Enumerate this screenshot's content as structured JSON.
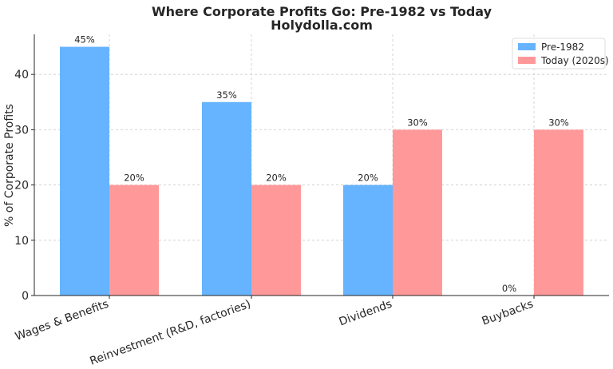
{
  "chart_data": {
    "type": "bar",
    "title": "Where Corporate Profits Go: Pre-1982 vs Today",
    "subtitle": "Holydolla.com",
    "xlabel": "",
    "ylabel": "% of Corporate Profits",
    "categories": [
      "Wages & Benefits",
      "Reinvestment (R&D, factories)",
      "Dividends",
      "Buybacks"
    ],
    "series": [
      {
        "name": "Pre-1982",
        "values": [
          45,
          35,
          20,
          0
        ],
        "color": "#66b3ff",
        "labels": [
          "45%",
          "35%",
          "20%",
          "0%"
        ]
      },
      {
        "name": "Today (2020s)",
        "values": [
          20,
          20,
          30,
          30
        ],
        "color": "#ff9999",
        "labels": [
          "20%",
          "20%",
          "30%",
          "30%"
        ]
      }
    ],
    "ylim": [
      0,
      47.25
    ],
    "yticks": [
      0,
      10,
      20,
      30,
      40
    ],
    "grid": true,
    "legend_position": "top-right"
  }
}
